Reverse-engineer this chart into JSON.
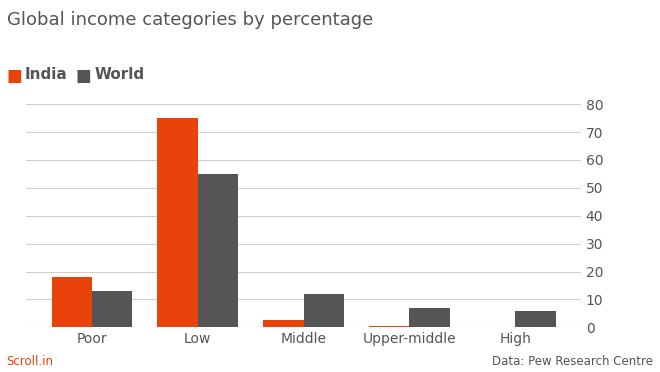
{
  "title": "Global income categories by percentage",
  "categories": [
    "Poor",
    "Low",
    "Middle",
    "Upper-middle",
    "High"
  ],
  "india_values": [
    18,
    75,
    2.5,
    0.5,
    0
  ],
  "world_values": [
    13,
    55,
    12,
    7,
    6
  ],
  "india_color": "#E8430A",
  "world_color": "#555555",
  "ylim": [
    0,
    80
  ],
  "yticks": [
    0,
    10,
    20,
    30,
    40,
    50,
    60,
    70,
    80
  ],
  "bar_width": 0.38,
  "legend_india": "India",
  "legend_world": "World",
  "footer_left": "Scroll.in",
  "footer_right": "Data: Pew Research Centre",
  "background_color": "#ffffff",
  "title_fontsize": 13,
  "tick_fontsize": 10,
  "legend_fontsize": 11,
  "footer_fontsize": 8.5
}
